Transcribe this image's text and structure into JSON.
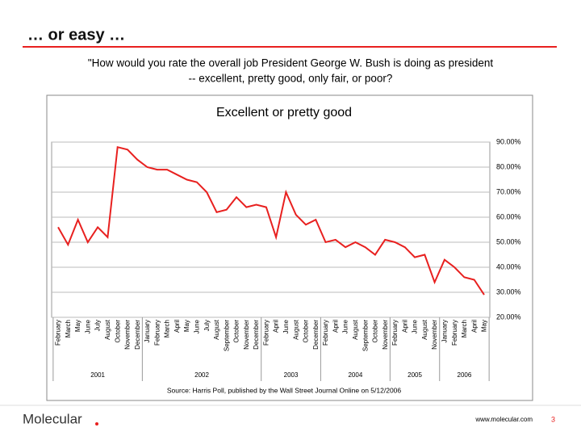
{
  "slide_title": "… or easy …",
  "question": [
    "\"How would you rate the overall job President George W. Bush is doing as president",
    "-- excellent, pretty good, only fair, or poor?"
  ],
  "chart_data": {
    "type": "line",
    "title": "Excellent or pretty good",
    "groups": [
      {
        "year": "2001",
        "months": [
          "February",
          "March",
          "May",
          "June",
          "July",
          "August",
          "October",
          "November",
          "December"
        ]
      },
      {
        "year": "2002",
        "months": [
          "January",
          "February",
          "March",
          "April",
          "May",
          "June",
          "July",
          "August",
          "September",
          "October",
          "November",
          "December"
        ]
      },
      {
        "year": "2003",
        "months": [
          "February",
          "April",
          "June",
          "August",
          "October",
          "December"
        ]
      },
      {
        "year": "2004",
        "months": [
          "February",
          "April",
          "June",
          "August",
          "September",
          "October",
          "November"
        ]
      },
      {
        "year": "2005",
        "months": [
          "February",
          "April",
          "June",
          "August",
          "November"
        ]
      },
      {
        "year": "2006",
        "months": [
          "January",
          "February",
          "March",
          "April",
          "May"
        ]
      }
    ],
    "values": [
      56,
      49,
      59,
      50,
      56,
      52,
      88,
      87,
      83,
      80,
      79,
      79,
      77,
      75,
      74,
      70,
      62,
      63,
      68,
      64,
      65,
      64,
      52,
      70,
      61,
      57,
      59,
      50,
      51,
      48,
      50,
      48,
      45,
      51,
      50,
      48,
      44,
      45,
      34,
      43,
      40,
      36,
      35,
      29
    ],
    "color": "#e8201f",
    "ylim": [
      20,
      90
    ],
    "yticks": [
      {
        "value": 20,
        "label": "20.00%"
      },
      {
        "value": 30,
        "label": "30.00%"
      },
      {
        "value": 40,
        "label": "40.00%"
      },
      {
        "value": 50,
        "label": "50.00%"
      },
      {
        "value": 60,
        "label": "60.00%"
      },
      {
        "value": 70,
        "label": "70.00%"
      },
      {
        "value": 80,
        "label": "80.00%"
      },
      {
        "value": 90,
        "label": "90.00%"
      }
    ],
    "grid": true
  },
  "source": "Source: Harris Poll, published by the Wall Street Journal Online on 5/12/2006",
  "footer": {
    "logo": "Molecular",
    "url": "www.molecular.com",
    "page": "3"
  }
}
